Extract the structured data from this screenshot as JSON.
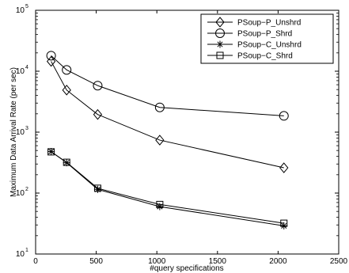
{
  "chart_data": {
    "type": "line",
    "xlabel": "#query specifications",
    "ylabel": "Maximum Data Arrival Rate (per sec)",
    "xlim": [
      0,
      2500
    ],
    "ylim": [
      10,
      100000
    ],
    "yscale": "log",
    "x_ticks": [
      0,
      500,
      1000,
      1500,
      2000,
      2500
    ],
    "x_tick_labels": [
      "0",
      "500",
      "1000",
      "1500",
      "2000",
      "2500"
    ],
    "y_ticks": [
      10,
      100,
      1000,
      10000,
      100000
    ],
    "y_tick_bases": [
      "10",
      "10",
      "10",
      "10",
      "10"
    ],
    "y_tick_exponents": [
      "1",
      "2",
      "3",
      "4",
      "5"
    ],
    "grid": false,
    "legend_position": "top-right",
    "x": [
      128,
      256,
      512,
      1024,
      2048
    ],
    "series": [
      {
        "name": "PSoup−P_Unshrd",
        "marker": "diamond",
        "values": [
          14500,
          4900,
          1950,
          740,
          260
        ]
      },
      {
        "name": "PSoup−P_Shrd",
        "marker": "circle",
        "values": [
          18000,
          10500,
          5800,
          2550,
          1850
        ]
      },
      {
        "name": "PSoup−C_Unshrd",
        "marker": "asterisk",
        "values": [
          480,
          315,
          115,
          60,
          29
        ]
      },
      {
        "name": "PSoup−C_Shrd",
        "marker": "square",
        "values": [
          475,
          320,
          120,
          65,
          32
        ]
      }
    ]
  }
}
